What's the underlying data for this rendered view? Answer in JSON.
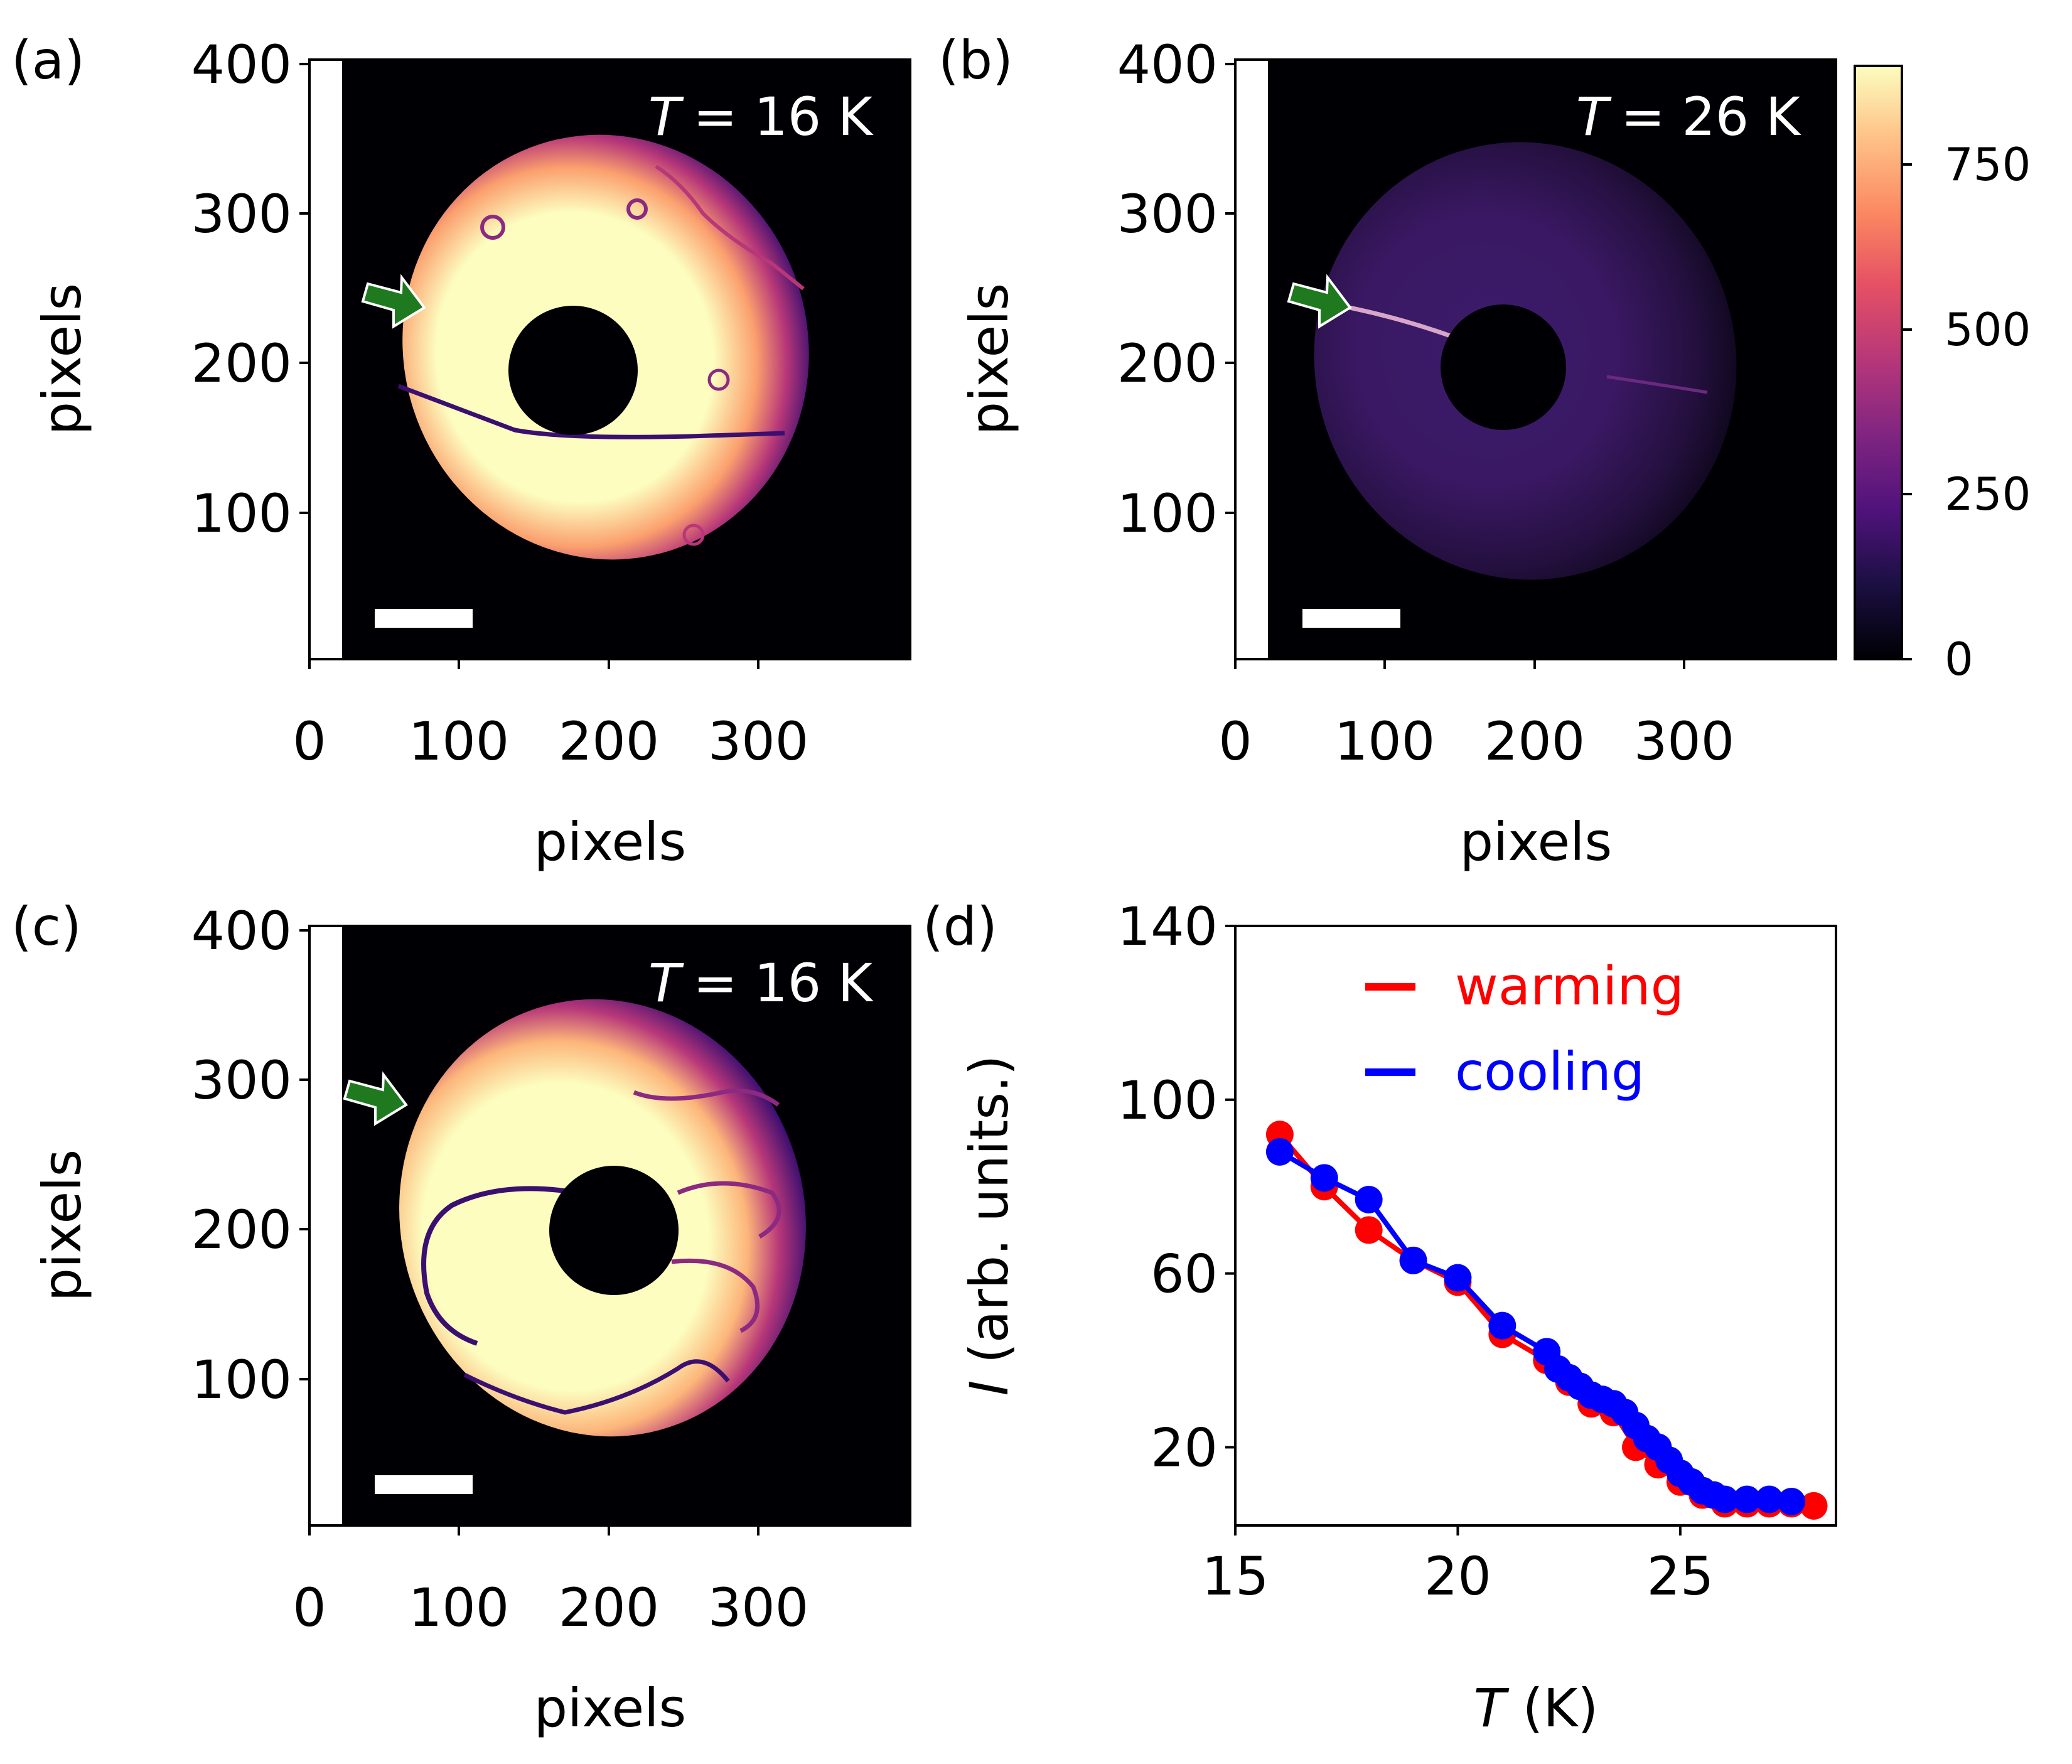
{
  "figure": {
    "panels": [
      {
        "letter": "(a)",
        "temperature_label": "= 16 K"
      },
      {
        "letter": "(b)",
        "temperature_label": "= 26 K"
      },
      {
        "letter": "(c)",
        "temperature_label": "= 16 K"
      },
      {
        "letter": "(d)"
      }
    ],
    "temperature_symbol": "T",
    "colorbar": {
      "ticks": [
        "0",
        "250",
        "500",
        "750"
      ],
      "range": [
        0,
        900
      ],
      "colormap": "magma"
    },
    "colors": {
      "bright": "#fcfdbf",
      "dark": "#000004",
      "arrow": "#1f7a1f",
      "warming": "#ff0000",
      "cooling": "#0000ff"
    }
  },
  "chart_data": [
    {
      "type": "heatmap",
      "panel": "(a)",
      "title": "T = 16 K",
      "xlabel": "pixels",
      "ylabel": "pixels",
      "xticks": [
        0,
        100,
        200,
        300
      ],
      "yticks": [
        100,
        200,
        300,
        400
      ],
      "xlim": [
        0,
        400
      ],
      "ylim": [
        0,
        400
      ],
      "annotation": "green arrow marking a domain wall",
      "scale_bar": true
    },
    {
      "type": "heatmap",
      "panel": "(b)",
      "title": "T = 26 K",
      "xlabel": "pixels",
      "ylabel": "pixels",
      "xticks": [
        0,
        100,
        200,
        300
      ],
      "yticks": [
        100,
        200,
        300,
        400
      ],
      "xlim": [
        0,
        400
      ],
      "ylim": [
        0,
        400
      ],
      "colorbar_ticks": [
        0,
        250,
        500,
        750
      ],
      "annotation": "green arrow marking a domain wall",
      "scale_bar": true
    },
    {
      "type": "heatmap",
      "panel": "(c)",
      "title": "T = 16 K",
      "xlabel": "pixels",
      "ylabel": "pixels",
      "xticks": [
        0,
        100,
        200,
        300
      ],
      "yticks": [
        100,
        200,
        300,
        400
      ],
      "xlim": [
        0,
        400
      ],
      "ylim": [
        0,
        400
      ],
      "annotation": "green arrow marking a domain wall",
      "scale_bar": true
    },
    {
      "type": "line",
      "panel": "(d)",
      "xlabel": "T (K)",
      "ylabel": "I (arb. units.)",
      "xlim": [
        15,
        28.5
      ],
      "ylim": [
        2,
        140
      ],
      "xticks": [
        15,
        20,
        25
      ],
      "yticks": [
        20,
        60,
        100,
        140
      ],
      "legend_position": "top-right",
      "series": [
        {
          "name": "warming",
          "color": "#ff0000",
          "x": [
            16,
            17,
            18,
            19,
            20,
            21,
            22,
            22.5,
            23,
            23.5,
            24,
            24.5,
            25,
            25.5,
            26,
            26.5,
            27,
            27.5,
            28
          ],
          "y": [
            92,
            80,
            70,
            63,
            58,
            46,
            40,
            35,
            30,
            28,
            20,
            16,
            12,
            9,
            7,
            7,
            7,
            7,
            6.5
          ]
        },
        {
          "name": "cooling",
          "color": "#0000ff",
          "x": [
            16,
            17,
            18,
            19,
            20,
            21,
            22,
            22.25,
            22.5,
            22.75,
            23,
            23.25,
            23.5,
            23.75,
            24,
            24.25,
            24.5,
            24.75,
            25,
            25.25,
            25.5,
            25.75,
            26,
            26.5,
            27,
            27.5
          ],
          "y": [
            88,
            82,
            77,
            63,
            59,
            48,
            42,
            38,
            36,
            34,
            32,
            31,
            30,
            28,
            25,
            22,
            20,
            17,
            14,
            12,
            10,
            9,
            8,
            8,
            8,
            7.5
          ]
        }
      ]
    }
  ]
}
